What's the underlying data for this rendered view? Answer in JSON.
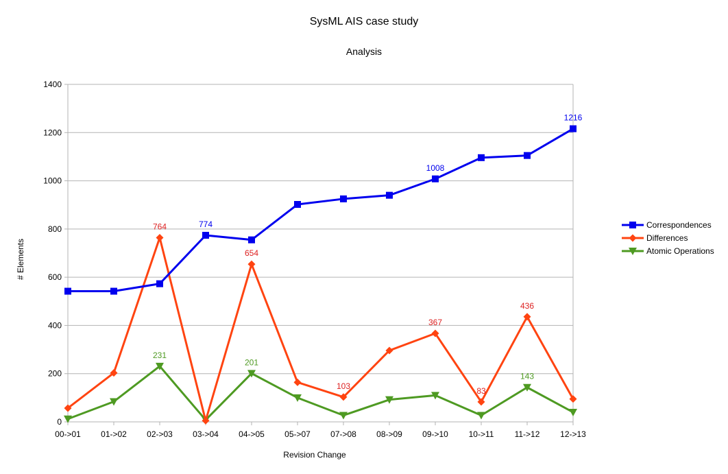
{
  "chart_data": {
    "type": "line",
    "title": "SysML AIS case study",
    "subtitle": "Analysis",
    "xlabel": "Revision Change",
    "ylabel": "# Elements",
    "categories": [
      "00->01",
      "01->02",
      "02->03",
      "03->04",
      "04->05",
      "05->07",
      "07->08",
      "08->09",
      "09->10",
      "10->11",
      "11->12",
      "12->13"
    ],
    "ylim": [
      0,
      1400
    ],
    "yticks": [
      0,
      200,
      400,
      600,
      800,
      1000,
      1200,
      1400
    ],
    "grid": true,
    "legend_position": "right",
    "series": [
      {
        "name": "Correspondences",
        "color": "#0000ee",
        "marker": "square",
        "values": [
          542,
          542,
          573,
          774,
          755,
          902,
          925,
          940,
          1008,
          1096,
          1105,
          1216
        ],
        "labeled_indices": [
          3,
          8,
          11
        ]
      },
      {
        "name": "Differences",
        "color": "#ff4411",
        "label_color": "#dd2222",
        "marker": "diamond",
        "values": [
          57,
          203,
          764,
          5,
          654,
          164,
          103,
          296,
          367,
          83,
          436,
          95
        ],
        "labeled_indices": [
          2,
          4,
          6,
          8,
          9,
          10
        ]
      },
      {
        "name": "Atomic Operations",
        "color": "#4e9a22",
        "marker": "triangle-down",
        "values": [
          12,
          84,
          231,
          8,
          201,
          100,
          27,
          92,
          110,
          27,
          143,
          40
        ],
        "labeled_indices": [
          2,
          4,
          10
        ]
      }
    ]
  }
}
